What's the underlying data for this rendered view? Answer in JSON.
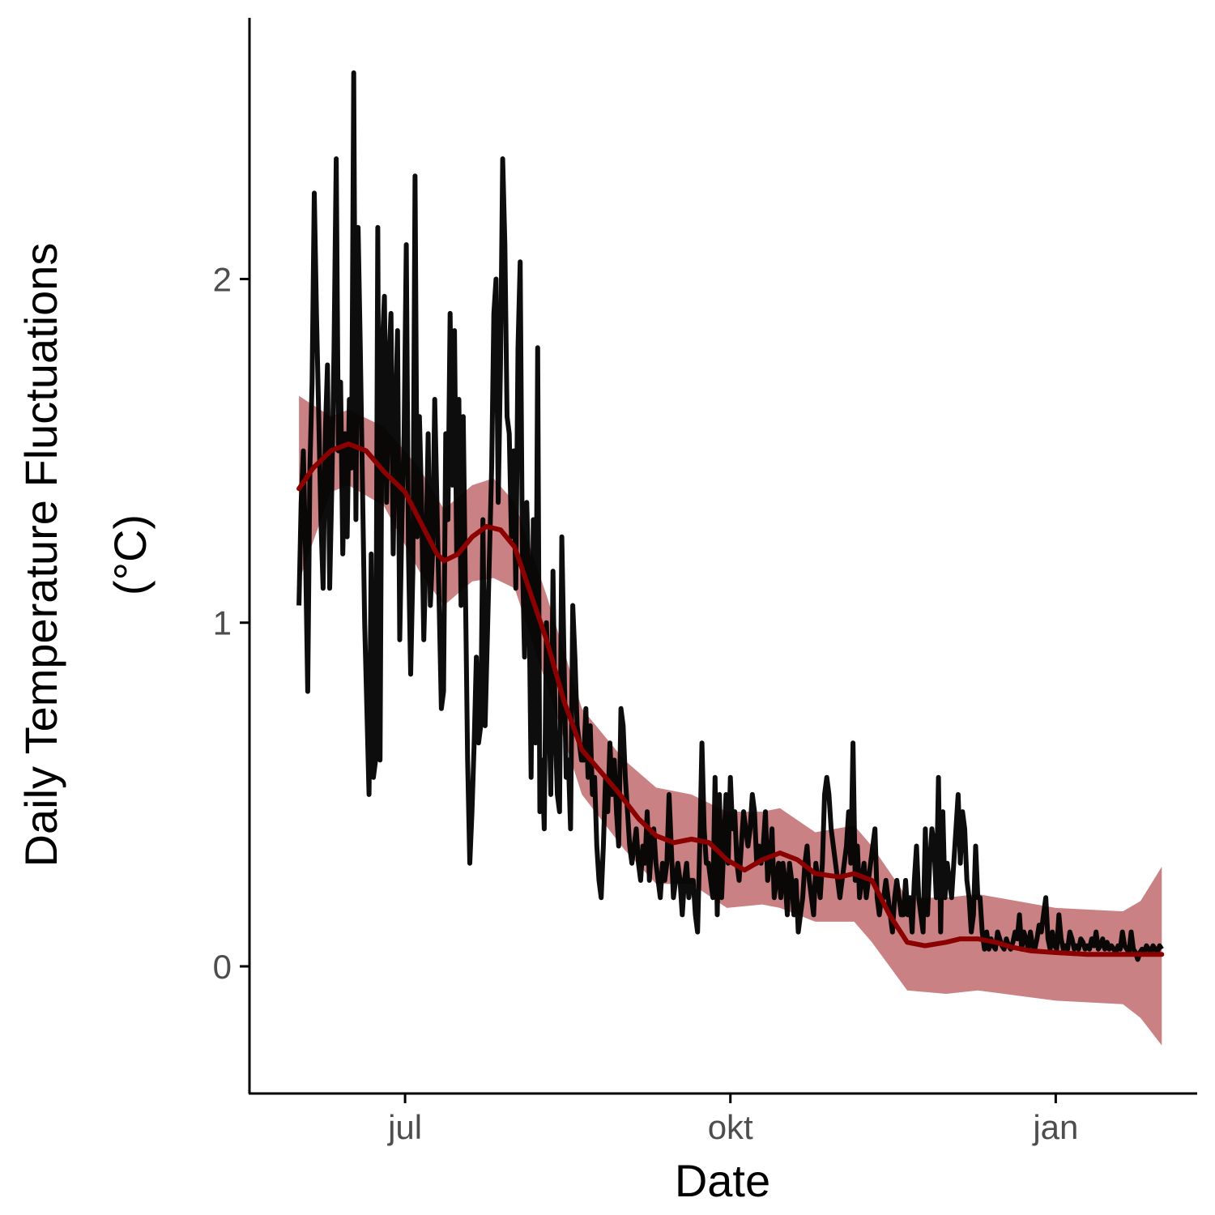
{
  "chart_data": {
    "type": "line",
    "title": "",
    "xlabel": "Date",
    "ylabel_line1": "Daily Temperature Fluctuations",
    "ylabel_line2": "(°C)",
    "x_ticks": [
      {
        "date": "2019-07-01",
        "label": "jul"
      },
      {
        "date": "2019-10-01",
        "label": "okt"
      },
      {
        "date": "2020-01-01",
        "label": "jan"
      }
    ],
    "y_ticks": [
      0,
      1,
      2
    ],
    "xlim": [
      "2019-05-18",
      "2020-02-10"
    ],
    "ylim": [
      -0.37,
      2.76
    ],
    "grid": false,
    "colors": {
      "raw": "#000000",
      "smooth": "#8b0000",
      "ribbon": "#c98183",
      "axis": "#000000",
      "tick_text": "#4d4d4d"
    },
    "series": [
      {
        "kind": "raw",
        "x_start": "2019-06-01",
        "x_end": "2020-01-31",
        "y": [
          1.05,
          1.35,
          1.5,
          1.2,
          0.8,
          1.45,
          1.7,
          2.25,
          1.9,
          1.6,
          1.3,
          1.1,
          1.55,
          1.75,
          1.1,
          1.4,
          1.8,
          2.35,
          1.5,
          1.7,
          1.2,
          1.55,
          1.25,
          1.65,
          1.45,
          2.6,
          1.3,
          2.15,
          1.8,
          1.4,
          1.0,
          0.75,
          0.5,
          1.2,
          0.55,
          0.6,
          2.15,
          0.6,
          1.8,
          1.95,
          1.35,
          1.75,
          1.9,
          1.2,
          1.6,
          1.85,
          0.95,
          1.3,
          1.55,
          2.1,
          1.2,
          0.85,
          1.15,
          2.3,
          1.25,
          1.6,
          1.35,
          0.95,
          1.2,
          1.55,
          1.05,
          1.2,
          1.65,
          1.35,
          1.05,
          0.75,
          0.8,
          1.55,
          1.3,
          1.9,
          1.4,
          1.85,
          1.2,
          1.65,
          1.05,
          1.6,
          1.1,
          0.6,
          0.3,
          0.45,
          0.65,
          0.9,
          0.65,
          0.7,
          1.3,
          0.7,
          0.95,
          1.2,
          1.45,
          1.9,
          2.0,
          1.35,
          1.75,
          2.35,
          2.1,
          1.6,
          1.55,
          1.25,
          1.5,
          1.1,
          1.8,
          2.05,
          1.2,
          0.9,
          1.35,
          1.1,
          0.55,
          1.3,
          0.65,
          1.8,
          0.45,
          0.6,
          0.4,
          1.0,
          0.8,
          0.5,
          1.15,
          0.7,
          0.5,
          0.45,
          1.25,
          0.9,
          0.55,
          0.6,
          0.4,
          1.05,
          0.9,
          0.7,
          0.65,
          0.6,
          0.6,
          0.75,
          0.55,
          0.7,
          0.5,
          0.55,
          0.35,
          0.25,
          0.2,
          0.35,
          0.55,
          0.45,
          0.65,
          0.5,
          0.6,
          0.45,
          0.35,
          0.75,
          0.7,
          0.55,
          0.45,
          0.35,
          0.3,
          0.35,
          0.4,
          0.3,
          0.25,
          0.35,
          0.3,
          0.45,
          0.25,
          0.35,
          0.4,
          0.3,
          0.25,
          0.2,
          0.3,
          0.25,
          0.3,
          0.5,
          0.35,
          0.2,
          0.25,
          0.3,
          0.25,
          0.15,
          0.25,
          0.3,
          0.2,
          0.25,
          0.25,
          0.15,
          0.1,
          0.35,
          0.65,
          0.4,
          0.3,
          0.3,
          0.25,
          0.2,
          0.55,
          0.15,
          0.5,
          0.2,
          0.35,
          0.5,
          0.3,
          0.55,
          0.4,
          0.45,
          0.3,
          0.25,
          0.35,
          0.45,
          0.4,
          0.35,
          0.4,
          0.5,
          0.45,
          0.3,
          0.35,
          0.3,
          0.35,
          0.45,
          0.25,
          0.3,
          0.4,
          0.2,
          0.25,
          0.3,
          0.2,
          0.3,
          0.25,
          0.15,
          0.3,
          0.25,
          0.15,
          0.25,
          0.1,
          0.15,
          0.2,
          0.3,
          0.35,
          0.25,
          0.2,
          0.15,
          0.3,
          0.25,
          0.2,
          0.3,
          0.5,
          0.55,
          0.5,
          0.4,
          0.35,
          0.3,
          0.25,
          0.2,
          0.25,
          0.3,
          0.35,
          0.45,
          0.3,
          0.65,
          0.25,
          0.35,
          0.2,
          0.25,
          0.3,
          0.2,
          0.25,
          0.3,
          0.35,
          0.4,
          0.2,
          0.15,
          0.2,
          0.2,
          0.25,
          0.2,
          0.15,
          0.1,
          0.2,
          0.25,
          0.2,
          0.15,
          0.15,
          0.25,
          0.15,
          0.2,
          0.1,
          0.25,
          0.35,
          0.2,
          0.15,
          0.1,
          0.4,
          0.15,
          0.3,
          0.4,
          0.35,
          0.2,
          0.55,
          0.1,
          0.45,
          0.2,
          0.3,
          0.25,
          0.2,
          0.3,
          0.4,
          0.5,
          0.3,
          0.45,
          0.4,
          0.25,
          0.2,
          0.1,
          0.15,
          0.35,
          0.2,
          0.2,
          0.1,
          0.05,
          0.1,
          0.05,
          0.08,
          0.06,
          0.05,
          0.1,
          0.08,
          0.06,
          0.05,
          0.08,
          0.06,
          0.05,
          0.07,
          0.1,
          0.08,
          0.15,
          0.05,
          0.1,
          0.08,
          0.05,
          0.1,
          0.06,
          0.05,
          0.08,
          0.12,
          0.1,
          0.15,
          0.2,
          0.08,
          0.05,
          0.1,
          0.06,
          0.05,
          0.15,
          0.08,
          0.05,
          0.06,
          0.05,
          0.1,
          0.08,
          0.05,
          0.06,
          0.05,
          0.08,
          0.07,
          0.05,
          0.06,
          0.05,
          0.08,
          0.06,
          0.1,
          0.05,
          0.06,
          0.08,
          0.05,
          0.07,
          0.05,
          0.06,
          0.05,
          0.04,
          0.06,
          0.05,
          0.1,
          0.06,
          0.05,
          0.04,
          0.1,
          0.05,
          0.04,
          0.02,
          0.04,
          0.05,
          0.04,
          0.06,
          0.05,
          0.04,
          0.06,
          0.05,
          0.04,
          0.06,
          0.05
        ]
      },
      {
        "kind": "smooth",
        "points": [
          [
            "2019-06-01",
            1.39
          ],
          [
            "2019-06-05",
            1.45
          ],
          [
            "2019-06-10",
            1.5
          ],
          [
            "2019-06-15",
            1.52
          ],
          [
            "2019-06-20",
            1.5
          ],
          [
            "2019-06-25",
            1.44
          ],
          [
            "2019-07-01",
            1.38
          ],
          [
            "2019-07-05",
            1.3
          ],
          [
            "2019-07-10",
            1.2
          ],
          [
            "2019-07-12",
            1.18
          ],
          [
            "2019-07-16",
            1.2
          ],
          [
            "2019-07-20",
            1.25
          ],
          [
            "2019-07-24",
            1.28
          ],
          [
            "2019-07-28",
            1.27
          ],
          [
            "2019-08-01",
            1.22
          ],
          [
            "2019-08-05",
            1.1
          ],
          [
            "2019-08-10",
            0.95
          ],
          [
            "2019-08-15",
            0.77
          ],
          [
            "2019-08-20",
            0.63
          ],
          [
            "2019-08-25",
            0.57
          ],
          [
            "2019-08-30",
            0.51
          ],
          [
            "2019-09-05",
            0.43
          ],
          [
            "2019-09-10",
            0.38
          ],
          [
            "2019-09-15",
            0.36
          ],
          [
            "2019-09-20",
            0.37
          ],
          [
            "2019-09-25",
            0.36
          ],
          [
            "2019-09-30",
            0.31
          ],
          [
            "2019-10-05",
            0.28
          ],
          [
            "2019-10-10",
            0.31
          ],
          [
            "2019-10-15",
            0.33
          ],
          [
            "2019-10-20",
            0.31
          ],
          [
            "2019-10-25",
            0.27
          ],
          [
            "2019-11-01",
            0.26
          ],
          [
            "2019-11-05",
            0.27
          ],
          [
            "2019-11-10",
            0.25
          ],
          [
            "2019-11-15",
            0.15
          ],
          [
            "2019-11-20",
            0.07
          ],
          [
            "2019-11-25",
            0.06
          ],
          [
            "2019-12-01",
            0.07
          ],
          [
            "2019-12-05",
            0.08
          ],
          [
            "2019-12-10",
            0.08
          ],
          [
            "2019-12-15",
            0.07
          ],
          [
            "2019-12-20",
            0.055
          ],
          [
            "2019-12-25",
            0.045
          ],
          [
            "2020-01-01",
            0.04
          ],
          [
            "2020-01-10",
            0.035
          ],
          [
            "2020-01-20",
            0.035
          ],
          [
            "2020-01-31",
            0.035
          ]
        ]
      },
      {
        "kind": "ribbon",
        "points": [
          [
            "2019-06-01",
            1.66,
            1.12
          ],
          [
            "2019-06-10",
            1.6,
            1.38
          ],
          [
            "2019-06-15",
            1.62,
            1.4
          ],
          [
            "2019-06-25",
            1.57,
            1.34
          ],
          [
            "2019-07-05",
            1.45,
            1.15
          ],
          [
            "2019-07-12",
            1.33,
            1.05
          ],
          [
            "2019-07-20",
            1.4,
            1.12
          ],
          [
            "2019-07-26",
            1.42,
            1.13
          ],
          [
            "2019-08-01",
            1.35,
            1.1
          ],
          [
            "2019-08-10",
            1.08,
            0.82
          ],
          [
            "2019-08-20",
            0.75,
            0.5
          ],
          [
            "2019-09-01",
            0.6,
            0.34
          ],
          [
            "2019-09-10",
            0.52,
            0.24
          ],
          [
            "2019-09-20",
            0.5,
            0.24
          ],
          [
            "2019-09-30",
            0.45,
            0.17
          ],
          [
            "2019-10-10",
            0.45,
            0.18
          ],
          [
            "2019-10-15",
            0.46,
            0.17
          ],
          [
            "2019-10-25",
            0.39,
            0.13
          ],
          [
            "2019-11-05",
            0.41,
            0.13
          ],
          [
            "2019-11-10",
            0.35,
            0.07
          ],
          [
            "2019-11-20",
            0.2,
            -0.07
          ],
          [
            "2019-12-01",
            0.2,
            -0.08
          ],
          [
            "2019-12-10",
            0.21,
            -0.07
          ],
          [
            "2020-01-01",
            0.17,
            -0.1
          ],
          [
            "2020-01-20",
            0.16,
            -0.11
          ],
          [
            "2020-01-25",
            0.19,
            -0.15
          ],
          [
            "2020-01-31",
            0.29,
            -0.23
          ]
        ]
      }
    ]
  }
}
